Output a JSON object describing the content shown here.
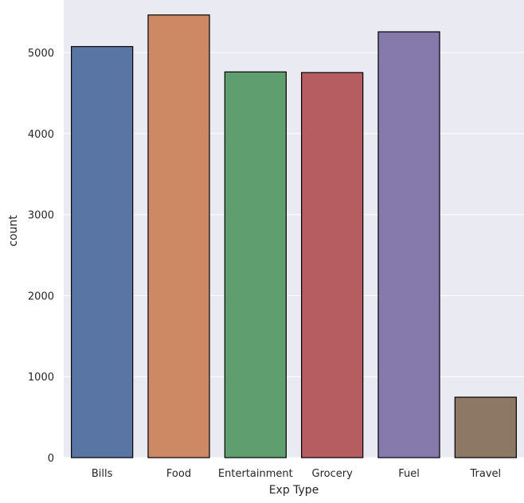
{
  "chart_data": {
    "type": "bar",
    "title": "",
    "xlabel": "Exp Type",
    "ylabel": "count",
    "categories": [
      "Bills",
      "Food",
      "Entertainment",
      "Grocery",
      "Fuel",
      "Travel"
    ],
    "values": [
      5075,
      5465,
      4762,
      4754,
      5257,
      746
    ],
    "ylim": [
      0,
      5650
    ],
    "yticks": [
      0,
      1000,
      2000,
      3000,
      4000,
      5000
    ],
    "ytick_labels": [
      "0",
      "1000",
      "2000",
      "3000",
      "4000",
      "5000"
    ],
    "colors": [
      "#5975a4",
      "#cc8963",
      "#5f9e6e",
      "#b55d60",
      "#857aab",
      "#8d7866"
    ],
    "background_color": "#eaeaf2",
    "grid": true,
    "legend": "none"
  }
}
